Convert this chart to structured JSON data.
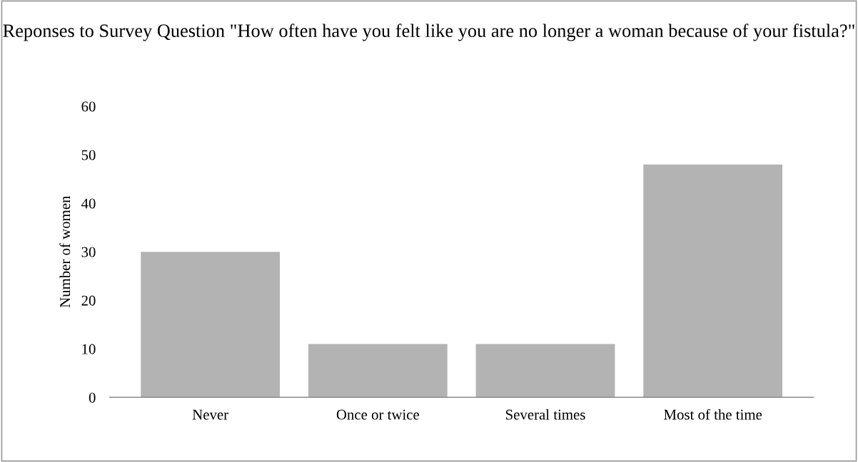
{
  "chart_data": {
    "type": "bar",
    "title": "Reponses to Survey Question \"How often have you felt like you are no longer a woman because of your fistula?\"",
    "ylabel": "Number of women",
    "categories": [
      "Never",
      "Once or twice",
      "Several times",
      "Most of the time"
    ],
    "values": [
      30,
      11,
      11,
      48
    ],
    "color": "#b3b3b3",
    "ylim": [
      0,
      60
    ],
    "yticks": [
      0,
      10,
      20,
      30,
      40,
      50,
      60
    ],
    "grid": false,
    "legend": false
  }
}
